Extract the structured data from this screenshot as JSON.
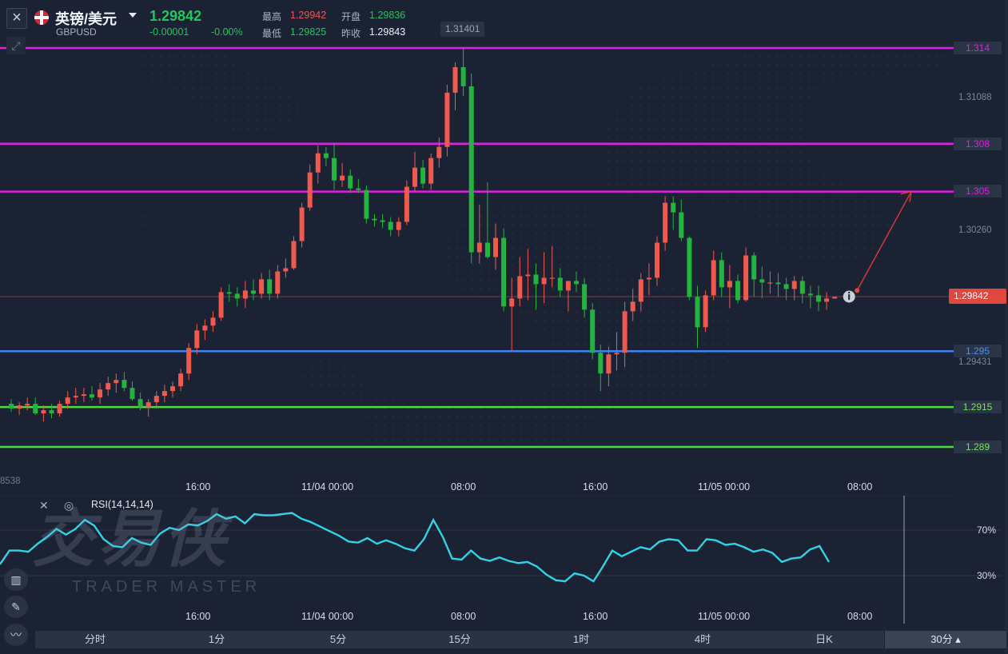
{
  "header": {
    "pair_name": "英镑/美元",
    "symbol": "GBPUSD",
    "last_price": "1.29842",
    "change": "-0.00001",
    "change_pct": "-0.00%",
    "high_label": "最高",
    "high_value": "1.29942",
    "open_label": "开盘",
    "open_value": "1.29836",
    "low_label": "最低",
    "low_value": "1.29825",
    "prev_close_label": "昨收",
    "prev_close_value": "1.29843"
  },
  "price_axis": {
    "labels": [
      "1.31088",
      "1.30260",
      "1.29431"
    ],
    "peak_marker": "1.31401",
    "current_price_tag": "1.29842",
    "left_cut_label": "8538"
  },
  "levels": [
    {
      "value": "1.314",
      "color": "#e21ee4"
    },
    {
      "value": "1.308",
      "color": "#e21ee4"
    },
    {
      "value": "1.305",
      "color": "#e21ee4"
    },
    {
      "value": "1.295",
      "color": "#3b82f6"
    },
    {
      "value": "1.2915",
      "color": "#4ade3a"
    },
    {
      "value": "1.289",
      "color": "#4ade3a"
    }
  ],
  "time_axis": [
    "16:00",
    "11/04 00:00",
    "08:00",
    "16:00",
    "11/05 00:00",
    "08:00"
  ],
  "rsi": {
    "label": "RSI(14,14,14)",
    "upper": "70%",
    "lower": "30%",
    "values": [
      40,
      52,
      52,
      51,
      58,
      64,
      71,
      66,
      71,
      79,
      74,
      62,
      56,
      55,
      63,
      59,
      57,
      67,
      72,
      70,
      75,
      74,
      78,
      84,
      80,
      82,
      76,
      84,
      83,
      83,
      84,
      85,
      80,
      77,
      73,
      69,
      65,
      60,
      59,
      63,
      58,
      61,
      58,
      54,
      52,
      62,
      79,
      64,
      45,
      44,
      52,
      45,
      43,
      46,
      43,
      41,
      42,
      38,
      31,
      26,
      25,
      32,
      30,
      25,
      38,
      52,
      47,
      51,
      55,
      53,
      60,
      62,
      61,
      52,
      52,
      62,
      61,
      57,
      58,
      55,
      51,
      53,
      50,
      42,
      45,
      46,
      53,
      56,
      42
    ]
  },
  "watermark": {
    "main": "交易侠",
    "sub": "TRADER MASTER"
  },
  "chart_data": {
    "type": "candlestick",
    "symbol": "GBPUSD",
    "interval": "30分",
    "yrange": [
      1.2875,
      1.3155
    ],
    "candles": [
      [
        1.2917,
        1.292,
        1.2912,
        1.2914
      ],
      [
        1.2914,
        1.2918,
        1.291,
        1.2916
      ],
      [
        1.2916,
        1.2921,
        1.2913,
        1.2917
      ],
      [
        1.2917,
        1.2921,
        1.291,
        1.2911
      ],
      [
        1.2911,
        1.2916,
        1.2906,
        1.2913
      ],
      [
        1.2913,
        1.2917,
        1.2908,
        1.2911
      ],
      [
        1.2911,
        1.2919,
        1.2909,
        1.2917
      ],
      [
        1.2917,
        1.2925,
        1.2914,
        1.2921
      ],
      [
        1.2921,
        1.2927,
        1.2917,
        1.2922
      ],
      [
        1.2922,
        1.2927,
        1.2918,
        1.2923
      ],
      [
        1.2923,
        1.2928,
        1.2919,
        1.2921
      ],
      [
        1.2921,
        1.293,
        1.2917,
        1.2926
      ],
      [
        1.2926,
        1.2934,
        1.2922,
        1.293
      ],
      [
        1.293,
        1.2936,
        1.2924,
        1.2932
      ],
      [
        1.2932,
        1.2937,
        1.2925,
        1.2927
      ],
      [
        1.2927,
        1.2931,
        1.2919,
        1.292
      ],
      [
        1.292,
        1.2924,
        1.2913,
        1.2915
      ],
      [
        1.2915,
        1.292,
        1.2909,
        1.2918
      ],
      [
        1.2918,
        1.2925,
        1.2914,
        1.2922
      ],
      [
        1.2922,
        1.2929,
        1.2918,
        1.2925
      ],
      [
        1.2925,
        1.2931,
        1.2921,
        1.2928
      ],
      [
        1.2928,
        1.2939,
        1.2925,
        1.2936
      ],
      [
        1.2936,
        1.2955,
        1.2932,
        1.2952
      ],
      [
        1.2952,
        1.2967,
        1.2948,
        1.2963
      ],
      [
        1.2963,
        1.297,
        1.2957,
        1.2966
      ],
      [
        1.2966,
        1.2975,
        1.2962,
        1.2971
      ],
      [
        1.2971,
        1.299,
        1.2969,
        1.2987
      ],
      [
        1.2987,
        1.2992,
        1.2981,
        1.2986
      ],
      [
        1.2986,
        1.299,
        1.2978,
        1.2983
      ],
      [
        1.2983,
        1.2994,
        1.2977,
        1.2988
      ],
      [
        1.2988,
        1.2995,
        1.2982,
        1.2986
      ],
      [
        1.2986,
        1.2999,
        1.2983,
        1.2995
      ],
      [
        1.2995,
        1.3001,
        1.2982,
        1.2986
      ],
      [
        1.2986,
        1.3004,
        1.2983,
        1.3
      ],
      [
        1.3,
        1.3008,
        1.2996,
        1.3002
      ],
      [
        1.3002,
        1.3022,
        1.3001,
        1.3019
      ],
      [
        1.3019,
        1.3043,
        1.3015,
        1.304
      ],
      [
        1.304,
        1.3067,
        1.3038,
        1.3062
      ],
      [
        1.3062,
        1.3079,
        1.3055,
        1.3074
      ],
      [
        1.3074,
        1.3078,
        1.3066,
        1.3071
      ],
      [
        1.3071,
        1.308,
        1.3051,
        1.3057
      ],
      [
        1.3057,
        1.3068,
        1.3053,
        1.306
      ],
      [
        1.306,
        1.3064,
        1.3049,
        1.3052
      ],
      [
        1.3052,
        1.3058,
        1.3049,
        1.3051
      ],
      [
        1.3051,
        1.3054,
        1.303,
        1.3033
      ],
      [
        1.3033,
        1.3036,
        1.3028,
        1.3032
      ],
      [
        1.3032,
        1.3036,
        1.3027,
        1.3031
      ],
      [
        1.3031,
        1.3034,
        1.3022,
        1.3026
      ],
      [
        1.3026,
        1.3034,
        1.3022,
        1.3031
      ],
      [
        1.3031,
        1.3057,
        1.3029,
        1.3053
      ],
      [
        1.3053,
        1.3075,
        1.305,
        1.3065
      ],
      [
        1.3065,
        1.307,
        1.3052,
        1.3055
      ],
      [
        1.3055,
        1.3074,
        1.3051,
        1.3071
      ],
      [
        1.3071,
        1.3084,
        1.3065,
        1.3078
      ],
      [
        1.3078,
        1.3117,
        1.3072,
        1.3112
      ],
      [
        1.3112,
        1.3131,
        1.3101,
        1.3128
      ],
      [
        1.3128,
        1.314,
        1.311,
        1.3116
      ],
      [
        1.3116,
        1.3124,
        1.3005,
        1.3012
      ],
      [
        1.3012,
        1.3042,
        1.3005,
        1.3018
      ],
      [
        1.3018,
        1.3056,
        1.3008,
        1.3009
      ],
      [
        1.3009,
        1.303,
        1.3001,
        1.3021
      ],
      [
        1.3021,
        1.3027,
        1.2975,
        1.2978
      ],
      [
        1.2978,
        1.2996,
        1.295,
        1.2983
      ],
      [
        1.2983,
        1.3009,
        1.2978,
        1.2997
      ],
      [
        1.2997,
        1.3014,
        1.2982,
        1.2998
      ],
      [
        1.2998,
        1.3005,
        1.2976,
        1.2992
      ],
      [
        1.2992,
        1.3012,
        1.298,
        1.2996
      ],
      [
        1.2996,
        1.3016,
        1.299,
        1.2996
      ],
      [
        1.2996,
        1.3002,
        1.2984,
        1.2988
      ],
      [
        1.2988,
        1.2994,
        1.2975,
        1.2994
      ],
      [
        1.2994,
        1.3,
        1.2987,
        1.2992
      ],
      [
        1.2992,
        1.2996,
        1.2971,
        1.2976
      ],
      [
        1.2976,
        1.298,
        1.2945,
        1.2949
      ],
      [
        1.2949,
        1.2954,
        1.2925,
        1.2936
      ],
      [
        1.2936,
        1.2953,
        1.2928,
        1.2948
      ],
      [
        1.2948,
        1.2962,
        1.2938,
        1.2949
      ],
      [
        1.2949,
        1.2981,
        1.294,
        1.2975
      ],
      [
        1.2975,
        1.2989,
        1.2969,
        1.2981
      ],
      [
        1.2981,
        1.2999,
        1.2975,
        1.2995
      ],
      [
        1.2995,
        1.3005,
        1.2985,
        1.2996
      ],
      [
        1.2996,
        1.3022,
        1.2991,
        1.3018
      ],
      [
        1.3018,
        1.3047,
        1.3013,
        1.3043
      ],
      [
        1.3043,
        1.3047,
        1.3026,
        1.3037
      ],
      [
        1.3037,
        1.3045,
        1.3019,
        1.3021
      ],
      [
        1.3021,
        1.3022,
        1.2982,
        1.2984
      ],
      [
        1.2984,
        1.2991,
        1.2952,
        1.2965
      ],
      [
        1.2965,
        1.2988,
        1.2962,
        1.2985
      ],
      [
        1.2985,
        1.3013,
        1.2982,
        1.3007
      ],
      [
        1.3007,
        1.3012,
        1.2984,
        1.299
      ],
      [
        1.299,
        1.3004,
        1.2977,
        1.2994
      ],
      [
        1.2994,
        1.2998,
        1.298,
        1.2982
      ],
      [
        1.2982,
        1.3015,
        1.2981,
        1.301
      ],
      [
        1.301,
        1.3012,
        1.2984,
        1.2995
      ],
      [
        1.2995,
        1.3003,
        1.2983,
        1.2993
      ],
      [
        1.2993,
        1.3,
        1.2986,
        1.2993
      ],
      [
        1.2993,
        1.2999,
        1.2984,
        1.2992
      ],
      [
        1.2992,
        1.2996,
        1.2982,
        1.2989
      ],
      [
        1.2989,
        1.2997,
        1.2982,
        1.2994
      ],
      [
        1.2994,
        1.2997,
        1.298,
        1.2986
      ],
      [
        1.2986,
        1.2991,
        1.2977,
        1.2985
      ],
      [
        1.2985,
        1.2991,
        1.2975,
        1.2981
      ],
      [
        1.2981,
        1.2987,
        1.2976,
        1.2983
      ],
      [
        1.2983,
        1.2984,
        1.2983,
        1.2984
      ]
    ],
    "projection": {
      "from": 1.2985,
      "to": 1.305
    }
  },
  "timeframes": [
    "分时",
    "1分",
    "5分",
    "15分",
    "1时",
    "4时",
    "日K"
  ],
  "selected_timeframe": "30分"
}
